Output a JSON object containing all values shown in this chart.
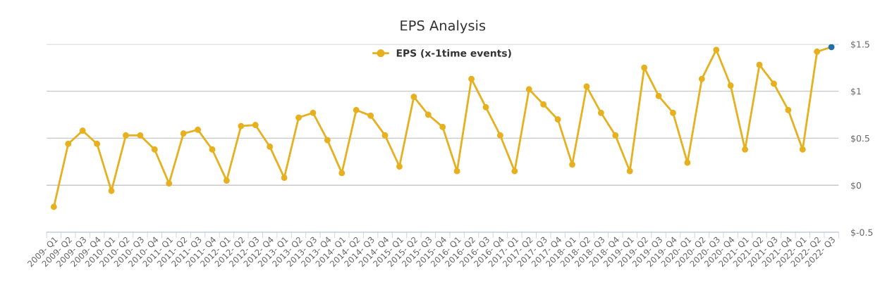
{
  "chart_data": {
    "type": "line",
    "title": "EPS Analysis",
    "categories": [
      "2009- Q1",
      "2009- Q2",
      "2009- Q3",
      "2009- Q4",
      "2010- Q1",
      "2010- Q2",
      "2010- Q3",
      "2010- Q4",
      "2011- Q1",
      "2011- Q2",
      "2011- Q3",
      "2011- Q4",
      "2012- Q1",
      "2012- Q2",
      "2012- Q3",
      "2012- Q4",
      "2013- Q1",
      "2013- Q2",
      "2013- Q3",
      "2013- Q4",
      "2014- Q1",
      "2014- Q2",
      "2014- Q3",
      "2014- Q4",
      "2015- Q1",
      "2015- Q2",
      "2015- Q3",
      "2015- Q4",
      "2016- Q1",
      "2016- Q2",
      "2016- Q3",
      "2016- Q4",
      "2017- Q1",
      "2017- Q2",
      "2017- Q3",
      "2017- Q4",
      "2018- Q1",
      "2018- Q2",
      "2018- Q3",
      "2018- Q4",
      "2019- Q1",
      "2019- Q2",
      "2019- Q3",
      "2019- Q4",
      "2020- Q1",
      "2020- Q2",
      "2020- Q3",
      "2020- Q4",
      "2021- Q1",
      "2021- Q2",
      "2021- Q3",
      "2021- Q4",
      "2022- Q1",
      "2022- Q2",
      "2022- Q3"
    ],
    "series": [
      {
        "name": "EPS (x-1time events)",
        "color": "#e6b01e",
        "values": [
          -0.23,
          0.44,
          0.58,
          0.44,
          -0.06,
          0.53,
          0.53,
          0.38,
          0.02,
          0.55,
          0.59,
          0.38,
          0.05,
          0.63,
          0.64,
          0.41,
          0.08,
          0.72,
          0.77,
          0.48,
          0.13,
          0.8,
          0.74,
          0.53,
          0.2,
          0.94,
          0.75,
          0.62,
          0.15,
          1.13,
          0.83,
          0.53,
          0.15,
          1.02,
          0.86,
          0.7,
          0.22,
          1.05,
          0.77,
          0.53,
          0.15,
          1.25,
          0.95,
          0.77,
          0.24,
          1.13,
          1.44,
          1.06,
          0.38,
          1.28,
          1.08,
          0.8,
          0.38,
          1.42,
          1.47
        ],
        "colors": [
          "#e6b01e",
          "#e6b01e",
          "#e6b01e",
          "#e6b01e",
          "#e6b01e",
          "#e6b01e",
          "#e6b01e",
          "#e6b01e",
          "#e6b01e",
          "#e6b01e",
          "#e6b01e",
          "#e6b01e",
          "#e6b01e",
          "#e6b01e",
          "#e6b01e",
          "#e6b01e",
          "#e6b01e",
          "#e6b01e",
          "#e6b01e",
          "#e6b01e",
          "#e6b01e",
          "#e6b01e",
          "#e6b01e",
          "#e6b01e",
          "#e6b01e",
          "#e6b01e",
          "#e6b01e",
          "#e6b01e",
          "#e6b01e",
          "#e6b01e",
          "#e6b01e",
          "#e6b01e",
          "#e6b01e",
          "#e6b01e",
          "#e6b01e",
          "#e6b01e",
          "#e6b01e",
          "#e6b01e",
          "#e6b01e",
          "#e6b01e",
          "#e6b01e",
          "#e6b01e",
          "#e6b01e",
          "#e6b01e",
          "#e6b01e",
          "#e6b01e",
          "#e6b01e",
          "#e6b01e",
          "#e6b01e",
          "#e6b01e",
          "#e6b01e",
          "#e6b01e",
          "#e6b01e",
          "#e6b01e",
          "#1f6fa8"
        ]
      }
    ],
    "ylim": [
      -0.5,
      1.5
    ],
    "yticks": [
      {
        "value": -0.5,
        "label": "$-0.5"
      },
      {
        "value": 0,
        "label": "$0"
      },
      {
        "value": 0.5,
        "label": "$0.5"
      },
      {
        "value": 1,
        "label": "$1"
      },
      {
        "value": 1.5,
        "label": "$1.5"
      }
    ],
    "grid": "y",
    "legend": "top",
    "marker": "circle",
    "line_style": "solid"
  }
}
